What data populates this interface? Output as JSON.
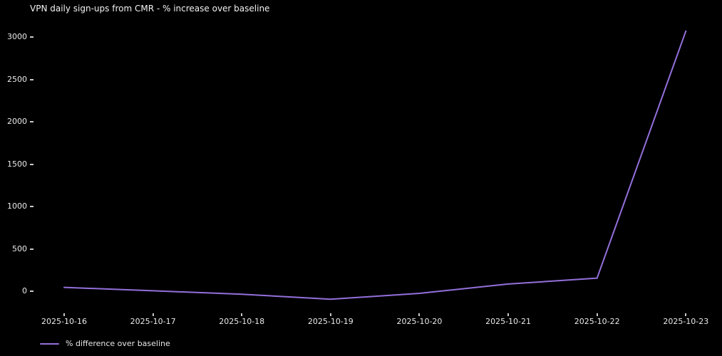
{
  "chart_data": {
    "type": "line",
    "title": "VPN daily sign-ups from CMR - % increase over baseline",
    "categories": [
      "2025-10-16",
      "2025-10-17",
      "2025-10-18",
      "2025-10-19",
      "2025-10-20",
      "2025-10-21",
      "2025-10-22",
      "2025-10-23"
    ],
    "series": [
      {
        "name": "% difference over baseline",
        "values": [
          45,
          5,
          -35,
          -95,
          -25,
          85,
          155,
          3070
        ],
        "color": "#9370db"
      }
    ],
    "y_ticks": [
      0,
      500,
      1000,
      1500,
      2000,
      2500,
      3000
    ],
    "ylim": [
      -200,
      3150
    ],
    "xlabel": "",
    "ylabel": "",
    "grid": false,
    "legend_position": "lower-left",
    "background_color": "#000000",
    "text_color": "#f2f2f2"
  }
}
